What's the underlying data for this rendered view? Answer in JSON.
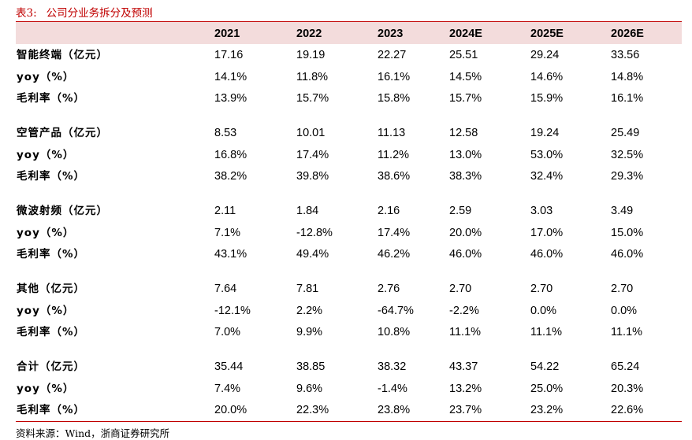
{
  "table_title": {
    "label": "表3:",
    "text": "公司分业务拆分及预测"
  },
  "columns": [
    "2021",
    "2022",
    "2023",
    "2024E",
    "2025E",
    "2026E"
  ],
  "groups": [
    {
      "rows": [
        {
          "label": "智能终端（亿元）",
          "values": [
            "17.16",
            "19.19",
            "22.27",
            "25.51",
            "29.24",
            "33.56"
          ]
        },
        {
          "label": "yoy（%）",
          "values": [
            "14.1%",
            "11.8%",
            "16.1%",
            "14.5%",
            "14.6%",
            "14.8%"
          ]
        },
        {
          "label": "毛利率（%）",
          "values": [
            "13.9%",
            "15.7%",
            "15.8%",
            "15.7%",
            "15.9%",
            "16.1%"
          ]
        }
      ]
    },
    {
      "rows": [
        {
          "label": "空管产品（亿元）",
          "values": [
            "8.53",
            "10.01",
            "11.13",
            "12.58",
            "19.24",
            "25.49"
          ]
        },
        {
          "label": "yoy（%）",
          "values": [
            "16.8%",
            "17.4%",
            "11.2%",
            "13.0%",
            "53.0%",
            "32.5%"
          ]
        },
        {
          "label": "毛利率（%）",
          "values": [
            "38.2%",
            "39.8%",
            "38.6%",
            "38.3%",
            "32.4%",
            "29.3%"
          ]
        }
      ]
    },
    {
      "rows": [
        {
          "label": "微波射频（亿元）",
          "values": [
            "2.11",
            "1.84",
            "2.16",
            "2.59",
            "3.03",
            "3.49"
          ]
        },
        {
          "label": "yoy（%）",
          "values": [
            "7.1%",
            "-12.8%",
            "17.4%",
            "20.0%",
            "17.0%",
            "15.0%"
          ]
        },
        {
          "label": "毛利率（%）",
          "values": [
            "43.1%",
            "49.4%",
            "46.2%",
            "46.0%",
            "46.0%",
            "46.0%"
          ]
        }
      ]
    },
    {
      "rows": [
        {
          "label": "其他（亿元）",
          "values": [
            "7.64",
            "7.81",
            "2.76",
            "2.70",
            "2.70",
            "2.70"
          ]
        },
        {
          "label": "yoy（%）",
          "values": [
            "-12.1%",
            "2.2%",
            "-64.7%",
            "-2.2%",
            "0.0%",
            "0.0%"
          ]
        },
        {
          "label": "毛利率（%）",
          "values": [
            "7.0%",
            "9.9%",
            "10.8%",
            "11.1%",
            "11.1%",
            "11.1%"
          ]
        }
      ]
    },
    {
      "rows": [
        {
          "label": "合计（亿元）",
          "values": [
            "35.44",
            "38.85",
            "38.32",
            "43.37",
            "54.22",
            "65.24"
          ]
        },
        {
          "label": "yoy（%）",
          "values": [
            "7.4%",
            "9.6%",
            "-1.4%",
            "13.2%",
            "25.0%",
            "20.3%"
          ]
        },
        {
          "label": "毛利率（%）",
          "values": [
            "20.0%",
            "22.3%",
            "23.8%",
            "23.7%",
            "23.2%",
            "22.6%"
          ]
        }
      ]
    }
  ],
  "source": "资料来源：Wind，浙商证券研究所",
  "colors": {
    "accent": "#c00000",
    "header_band": "#f3dcdc"
  }
}
